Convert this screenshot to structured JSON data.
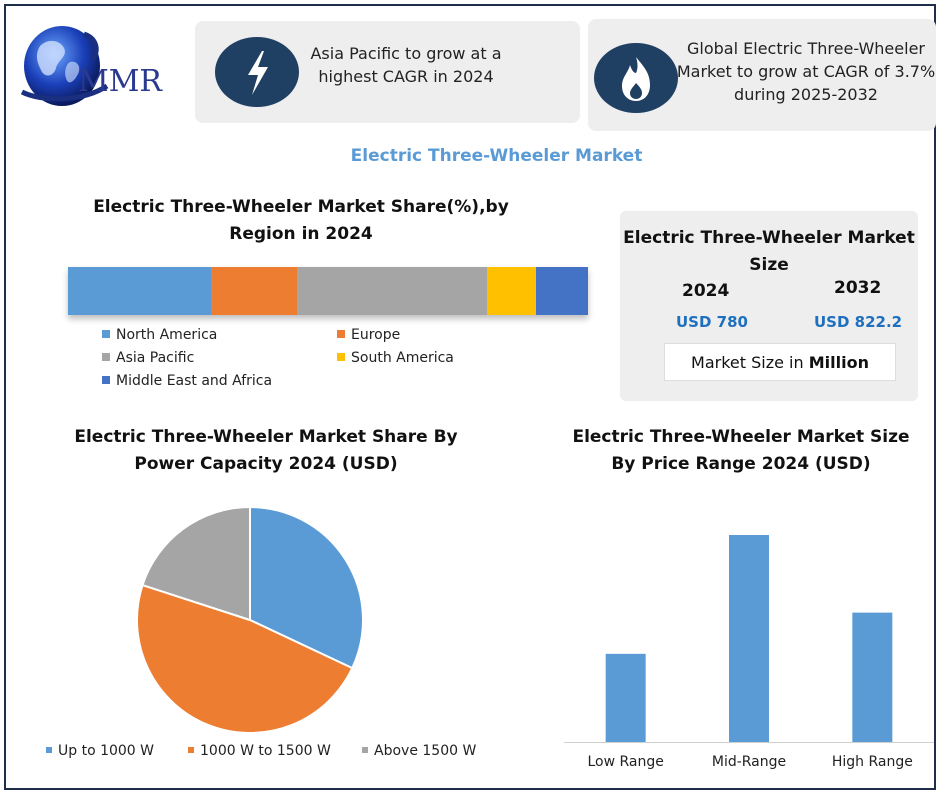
{
  "logo": {
    "text": "MMR",
    "icon": "globe-logo-icon",
    "color": "#2b3a8f"
  },
  "stats": [
    {
      "icon": "lightning-bolt-icon",
      "text": "Asia Pacific to grow at a highest CAGR in 2024"
    },
    {
      "icon": "flame-icon",
      "text": "Global Electric Three-Wheeler Market to grow at CAGR of 3.7% during 2025-2032"
    }
  ],
  "main_title": "Electric Three-Wheeler Market",
  "market_size": {
    "title": "Electric Three-Wheeler Market Size",
    "year1": "2024",
    "year2": "2032",
    "value1": "USD 780",
    "value2": "USD 822.2",
    "unit_prefix": "Market Size in ",
    "unit_bold": "Million"
  },
  "colors": {
    "blue": "#5b9bd5",
    "orange": "#ed7d31",
    "gray": "#a5a5a5",
    "yellow": "#ffc000",
    "darkblue": "#4472c4",
    "accent": "#1f3f63"
  },
  "chart_data": [
    {
      "type": "bar",
      "stacked": true,
      "orientation": "horizontal",
      "title": "Electric Three-Wheeler Market Share(%),by Region in 2024",
      "series": [
        {
          "name": "North America",
          "value": 27.5,
          "color": "#5b9bd5"
        },
        {
          "name": "Europe",
          "value": 16.5,
          "color": "#ed7d31"
        },
        {
          "name": "Asia Pacific",
          "value": 36.5,
          "color": "#a5a5a5"
        },
        {
          "name": "South America",
          "value": 9.5,
          "color": "#ffc000"
        },
        {
          "name": "Middle East and Africa",
          "value": 10,
          "color": "#4472c4"
        }
      ],
      "legend": "bottom"
    },
    {
      "type": "pie",
      "title": "Electric Three-Wheeler Market Share By Power Capacity 2024  (USD)",
      "slices": [
        {
          "name": "Up to 1000 W",
          "value": 32,
          "color": "#5b9bd5"
        },
        {
          "name": "1000 W to 1500 W",
          "value": 48,
          "color": "#ed7d31"
        },
        {
          "name": "Above 1500 W",
          "value": 20,
          "color": "#a5a5a5"
        }
      ],
      "legend": "bottom"
    },
    {
      "type": "bar",
      "title": "Electric Three-Wheeler Market Size By Price Range 2024  (USD)",
      "categories": [
        "Low Range",
        "Mid-Range",
        "High Range"
      ],
      "values": [
        92,
        216,
        135
      ],
      "ylim": [
        0,
        240
      ],
      "color": "#5b9bd5",
      "grid": false
    }
  ]
}
